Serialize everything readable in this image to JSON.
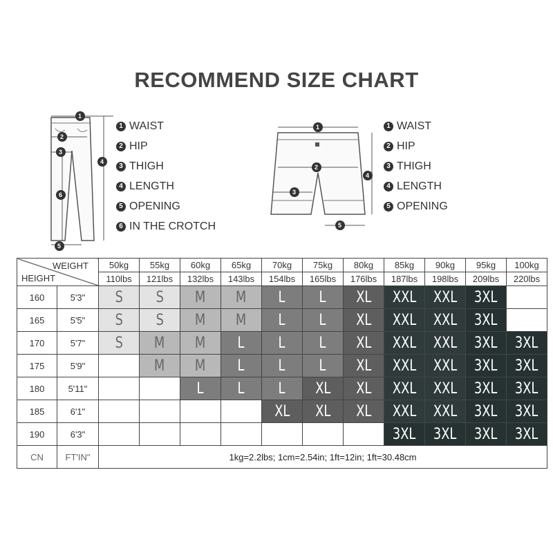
{
  "title": "RECOMMEND SIZE CHART",
  "pants_legend": [
    {
      "n": "1",
      "label": "WAIST"
    },
    {
      "n": "2",
      "label": "HIP"
    },
    {
      "n": "3",
      "label": "THIGH"
    },
    {
      "n": "4",
      "label": "LENGTH"
    },
    {
      "n": "5",
      "label": "OPENING"
    },
    {
      "n": "6",
      "label": "IN THE CROTCH"
    }
  ],
  "shorts_legend": [
    {
      "n": "1",
      "label": "WAIST"
    },
    {
      "n": "2",
      "label": "HIP"
    },
    {
      "n": "3",
      "label": "THIGH"
    },
    {
      "n": "4",
      "label": "LENGTH"
    },
    {
      "n": "5",
      "label": "OPENING"
    }
  ],
  "table": {
    "weight_label": "WEIGHT",
    "height_label": "HEIGHT",
    "kg": [
      "50kg",
      "55kg",
      "60kg",
      "65kg",
      "70kg",
      "75kg",
      "80kg",
      "85kg",
      "90kg",
      "95kg",
      "100kg"
    ],
    "lbs": [
      "110lbs",
      "121lbs",
      "132lbs",
      "143lbs",
      "154lbs",
      "165lbs",
      "176lbs",
      "187lbs",
      "198lbs",
      "209lbs",
      "220lbs"
    ],
    "rows": [
      {
        "cm": "160",
        "ftin": "5'3\"",
        "sizes": [
          "S",
          "S",
          "M",
          "M",
          "L",
          "L",
          "XL",
          "XXL",
          "XXL",
          "3XL",
          ""
        ]
      },
      {
        "cm": "165",
        "ftin": "5'5\"",
        "sizes": [
          "S",
          "S",
          "M",
          "M",
          "L",
          "L",
          "XL",
          "XXL",
          "XXL",
          "3XL",
          ""
        ]
      },
      {
        "cm": "170",
        "ftin": "5'7\"",
        "sizes": [
          "S",
          "M",
          "M",
          "L",
          "L",
          "L",
          "XL",
          "XXL",
          "XXL",
          "3XL",
          "3XL"
        ]
      },
      {
        "cm": "175",
        "ftin": "5'9\"",
        "sizes": [
          "",
          "M",
          "M",
          "L",
          "L",
          "L",
          "XL",
          "XXL",
          "XXL",
          "3XL",
          "3XL"
        ]
      },
      {
        "cm": "180",
        "ftin": "5'11\"",
        "sizes": [
          "",
          "",
          "L",
          "L",
          "L",
          "XL",
          "XL",
          "XXL",
          "XXL",
          "3XL",
          "3XL"
        ]
      },
      {
        "cm": "185",
        "ftin": "6'1\"",
        "sizes": [
          "",
          "",
          "",
          "",
          "XL",
          "XL",
          "XL",
          "XXL",
          "XXL",
          "3XL",
          "3XL"
        ]
      },
      {
        "cm": "190",
        "ftin": "6'3\"",
        "sizes": [
          "",
          "",
          "",
          "",
          "",
          "",
          "",
          "3XL",
          "3XL",
          "3XL",
          "3XL"
        ]
      }
    ],
    "footer": {
      "cn": "CN",
      "ftin": "FT'IN\"",
      "note": "1kg=2.2lbs; 1cm=2.54in; 1ft=12in; 1ft=30.48cm"
    }
  }
}
